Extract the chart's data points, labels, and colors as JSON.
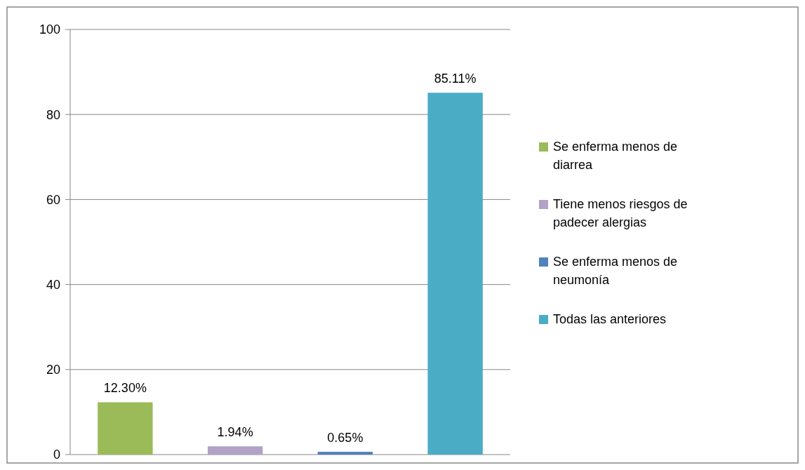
{
  "chart_data": {
    "type": "bar",
    "categories": [
      null
    ],
    "ylim": [
      0,
      100
    ],
    "yticks": [
      0,
      20,
      40,
      60,
      80,
      100
    ],
    "grid": "y",
    "legend": "right",
    "series": [
      {
        "name": "Se enferma menos de diarrea",
        "color": "#9bbb59",
        "values": [
          12.3
        ],
        "value_labels": [
          "12.30%"
        ]
      },
      {
        "name": "Tiene menos riesgos de padecer alergias",
        "color": "#b3a2c7",
        "values": [
          1.94
        ],
        "value_labels": [
          "1.94%"
        ]
      },
      {
        "name": "Se enferma menos de neumonía",
        "color": "#4f81bd",
        "values": [
          0.65
        ],
        "value_labels": [
          "0.65%"
        ]
      },
      {
        "name": "Todas las anteriores",
        "color": "#4bacc6",
        "values": [
          85.11
        ],
        "value_labels": [
          "85.11%"
        ]
      }
    ]
  }
}
